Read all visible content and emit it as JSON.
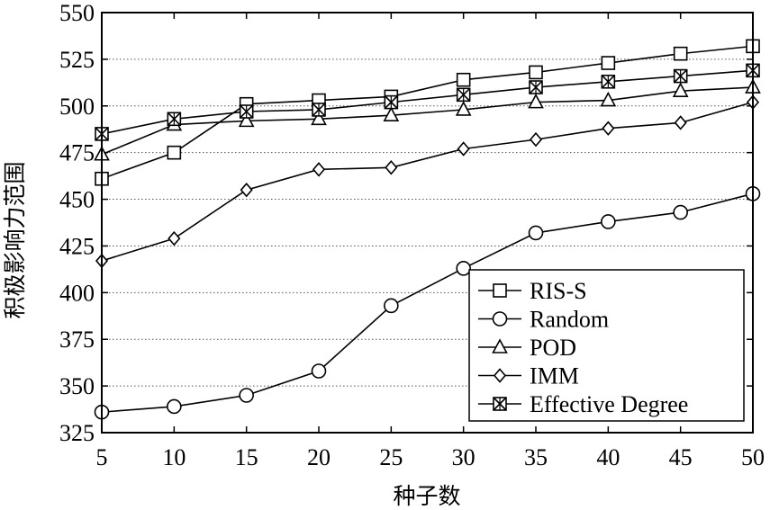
{
  "chart_data": {
    "type": "line",
    "title": "",
    "xlabel": "种子数",
    "ylabel": "积极影响力范围",
    "xlim": [
      5,
      50
    ],
    "ylim": [
      325,
      550
    ],
    "x": [
      5,
      10,
      15,
      20,
      25,
      30,
      35,
      40,
      45,
      50
    ],
    "xticks": [
      "5",
      "10",
      "15",
      "20",
      "25",
      "30",
      "35",
      "40",
      "45",
      "50"
    ],
    "yticks": [
      "325",
      "350",
      "375",
      "400",
      "425",
      "450",
      "475",
      "500",
      "525",
      "550"
    ],
    "grid": "horizontal-dotted",
    "legend_position": "bottom-right",
    "series": [
      {
        "name": "RIS-S",
        "marker": "square",
        "values": [
          461,
          475,
          501,
          503,
          505,
          514,
          518,
          523,
          528,
          532
        ]
      },
      {
        "name": "Random",
        "marker": "circle",
        "values": [
          336,
          339,
          345,
          358,
          393,
          413,
          432,
          438,
          443,
          453
        ]
      },
      {
        "name": "POD",
        "marker": "triangle",
        "values": [
          474,
          490,
          492,
          493,
          495,
          498,
          502,
          503,
          508,
          510
        ]
      },
      {
        "name": "IMM",
        "marker": "diamond",
        "values": [
          417,
          429,
          455,
          466,
          467,
          477,
          482,
          488,
          491,
          502
        ]
      },
      {
        "name": "Effective Degree",
        "marker": "boxed-x",
        "values": [
          485,
          493,
          497,
          498,
          502,
          506,
          510,
          513,
          516,
          519
        ]
      }
    ]
  }
}
